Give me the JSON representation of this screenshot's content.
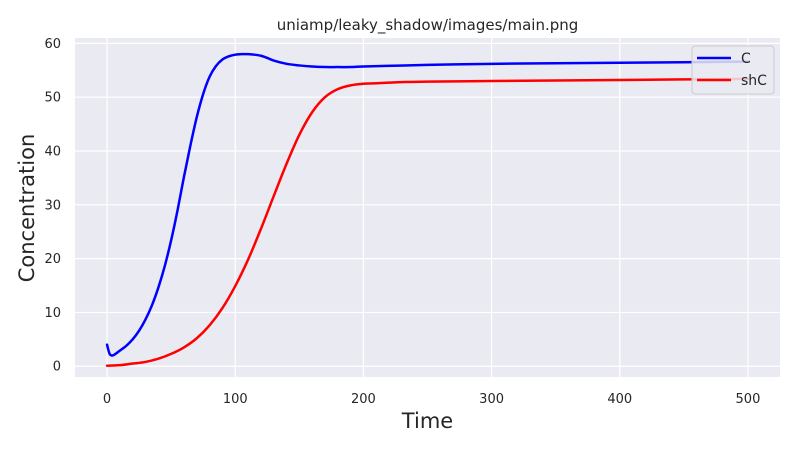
{
  "chart_data": {
    "type": "line",
    "title": "uniamp/leaky_shadow/images/main.png",
    "xlabel": "Time",
    "ylabel": "Concentration",
    "xlim": [
      -25,
      525
    ],
    "ylim": [
      -2,
      61
    ],
    "xticks": [
      0,
      100,
      200,
      300,
      400,
      500
    ],
    "yticks": [
      0,
      10,
      20,
      30,
      40,
      50,
      60
    ],
    "grid": true,
    "legend_position": "top-right",
    "background": "#eaeaf2",
    "series": [
      {
        "name": "C",
        "color": "#0000ff",
        "x": [
          0,
          2,
          4,
          6,
          10,
          15,
          20,
          25,
          30,
          35,
          40,
          45,
          50,
          55,
          60,
          65,
          70,
          75,
          80,
          85,
          90,
          95,
          100,
          105,
          110,
          115,
          120,
          125,
          130,
          140,
          150,
          160,
          170,
          180,
          190,
          200,
          250,
          300,
          350,
          400,
          450,
          500
        ],
        "y": [
          4.0,
          2.3,
          2.0,
          2.2,
          2.9,
          3.8,
          5.0,
          6.6,
          8.7,
          11.3,
          14.6,
          18.6,
          23.4,
          29.0,
          35.2,
          41.0,
          46.3,
          50.6,
          53.8,
          55.8,
          57.0,
          57.6,
          57.9,
          58.0,
          58.0,
          57.9,
          57.7,
          57.3,
          56.8,
          56.2,
          55.9,
          55.7,
          55.6,
          55.6,
          55.6,
          55.7,
          56.0,
          56.2,
          56.3,
          56.4,
          56.5,
          56.6
        ]
      },
      {
        "name": "shC",
        "color": "#ff0000",
        "x": [
          0,
          10,
          20,
          30,
          40,
          50,
          60,
          70,
          80,
          90,
          100,
          110,
          120,
          130,
          140,
          150,
          160,
          170,
          180,
          190,
          200,
          210,
          220,
          230,
          250,
          300,
          350,
          400,
          450,
          500
        ],
        "y": [
          0.1,
          0.2,
          0.5,
          0.8,
          1.4,
          2.3,
          3.5,
          5.2,
          7.6,
          10.8,
          14.9,
          19.8,
          25.5,
          31.6,
          37.6,
          43.0,
          47.2,
          50.0,
          51.5,
          52.2,
          52.5,
          52.6,
          52.7,
          52.8,
          52.9,
          53.0,
          53.1,
          53.2,
          53.3,
          53.4
        ]
      }
    ]
  }
}
